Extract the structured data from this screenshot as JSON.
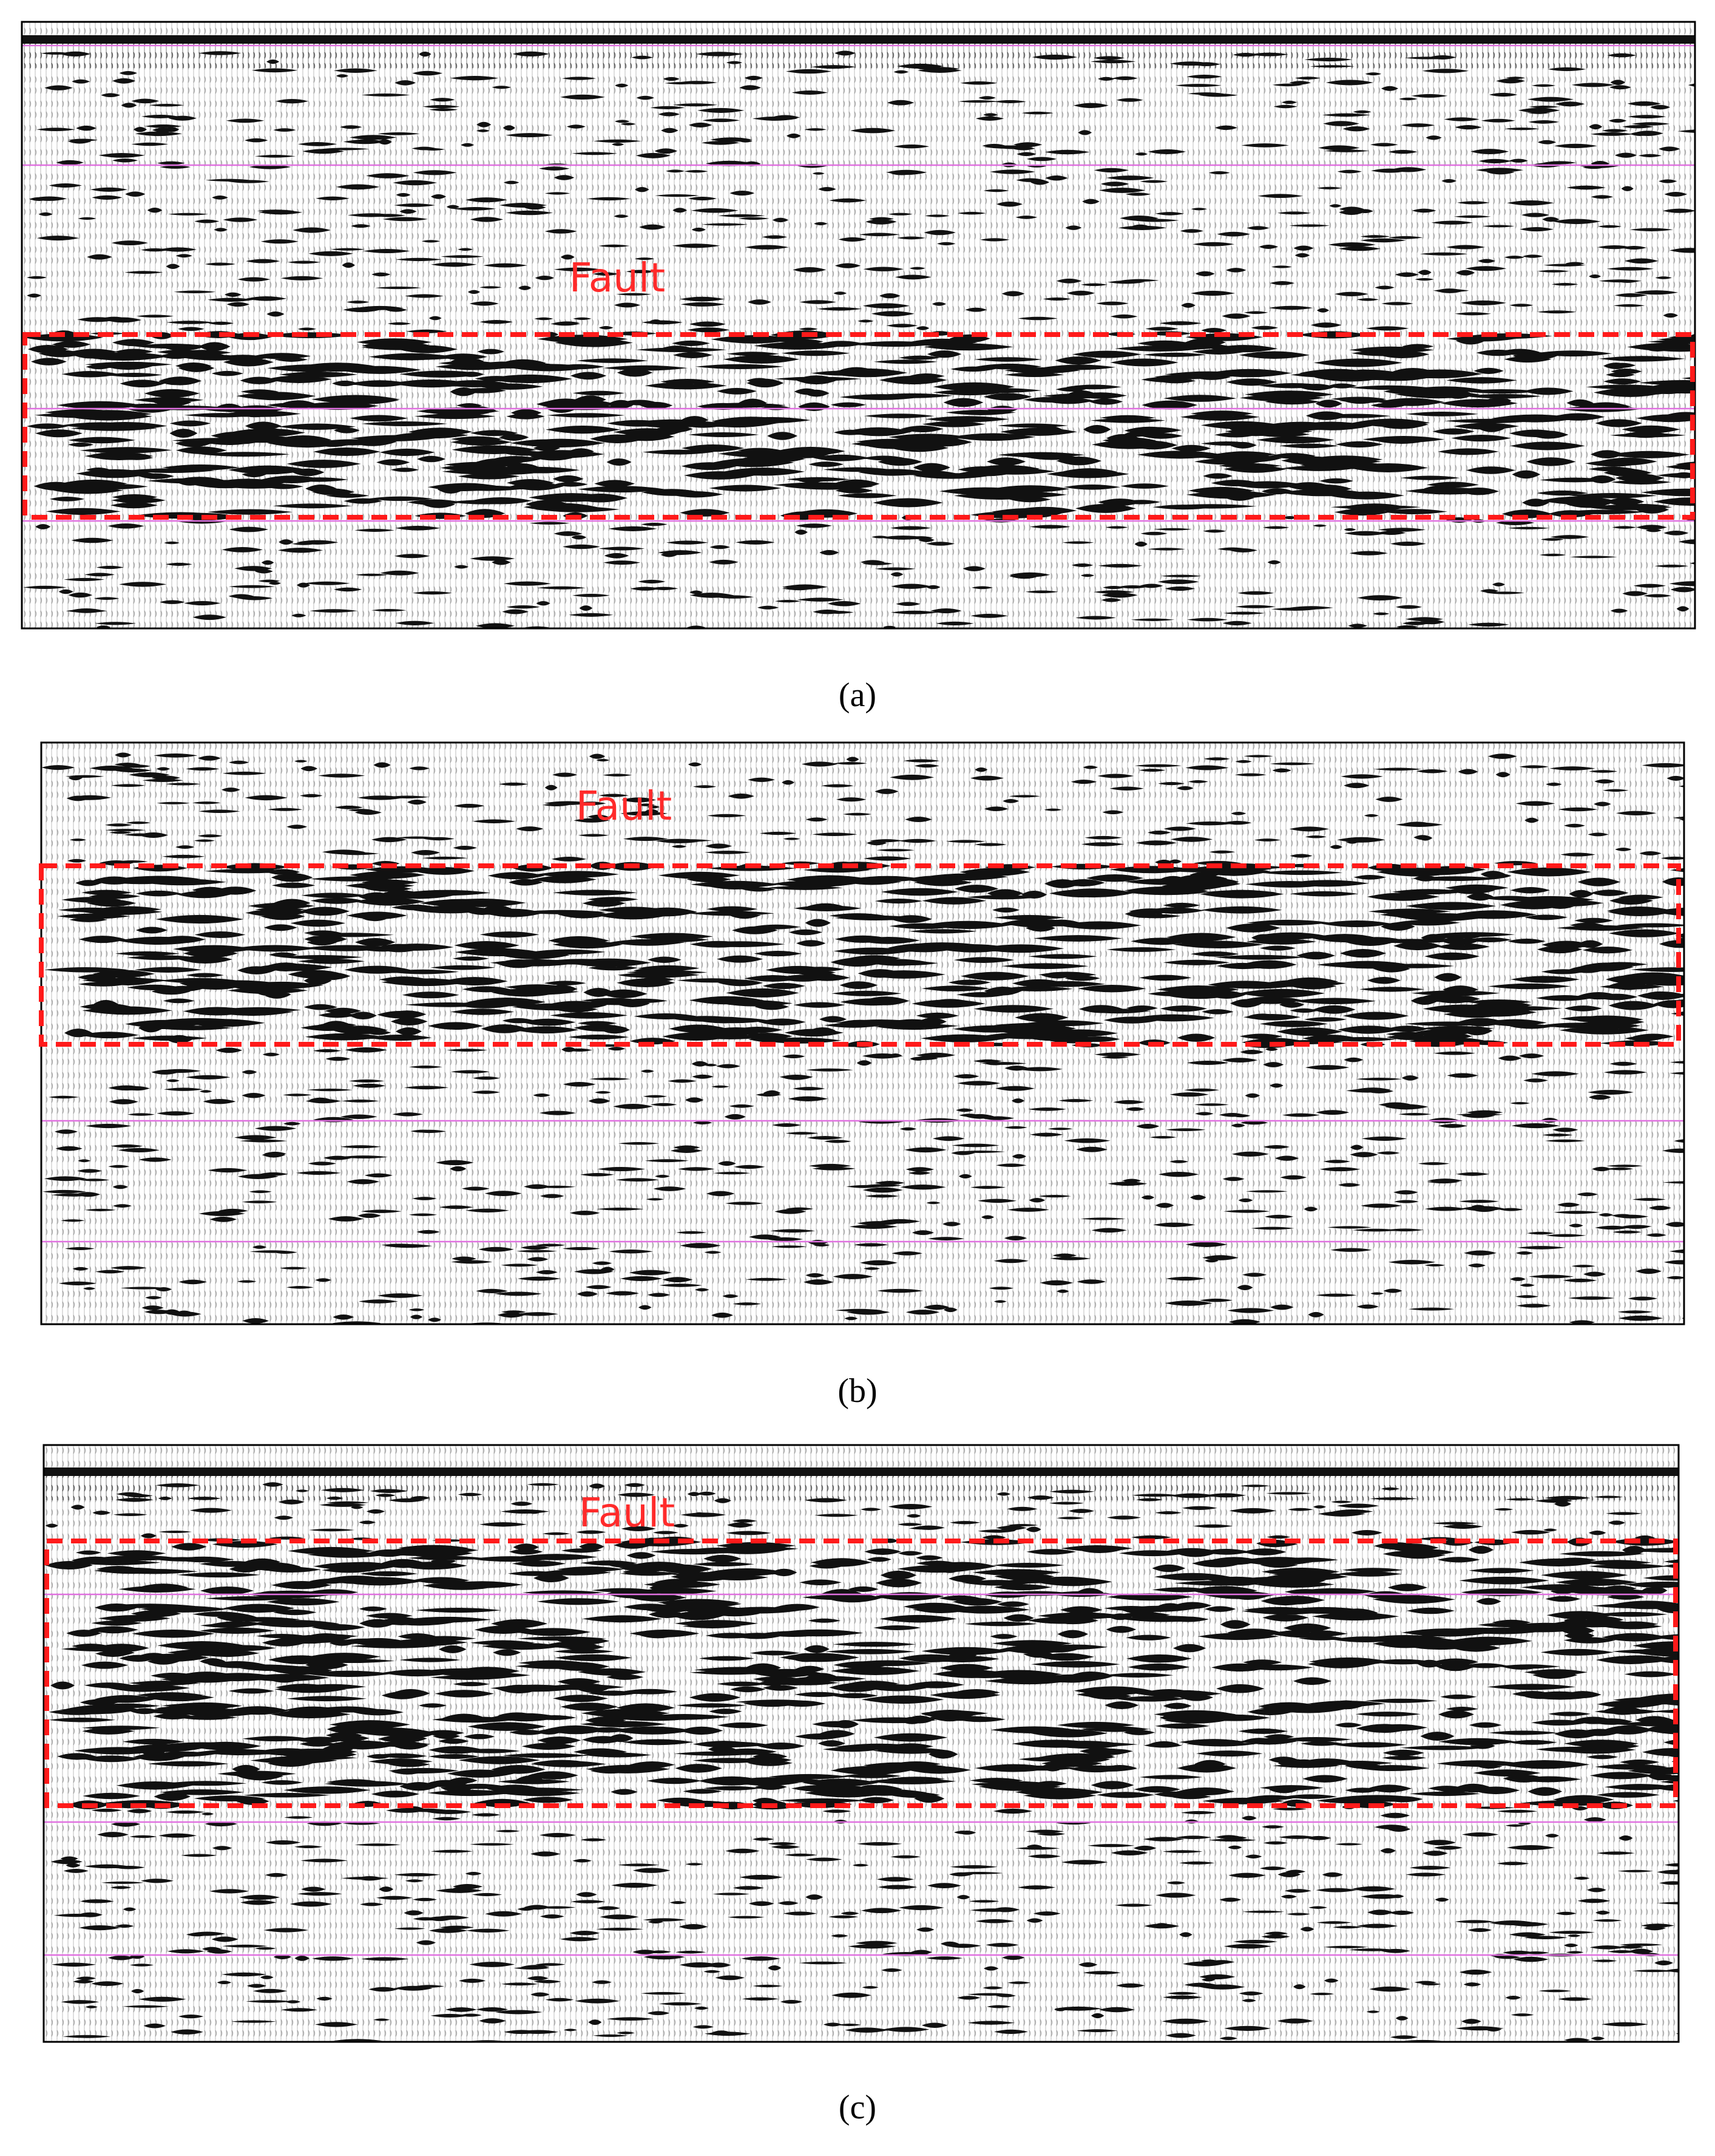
{
  "panels": [
    {
      "annotation": "Fault",
      "caption": "(a)"
    },
    {
      "annotation": "Fault",
      "caption": "(b)"
    },
    {
      "annotation": "Fault",
      "caption": "(c)"
    }
  ]
}
